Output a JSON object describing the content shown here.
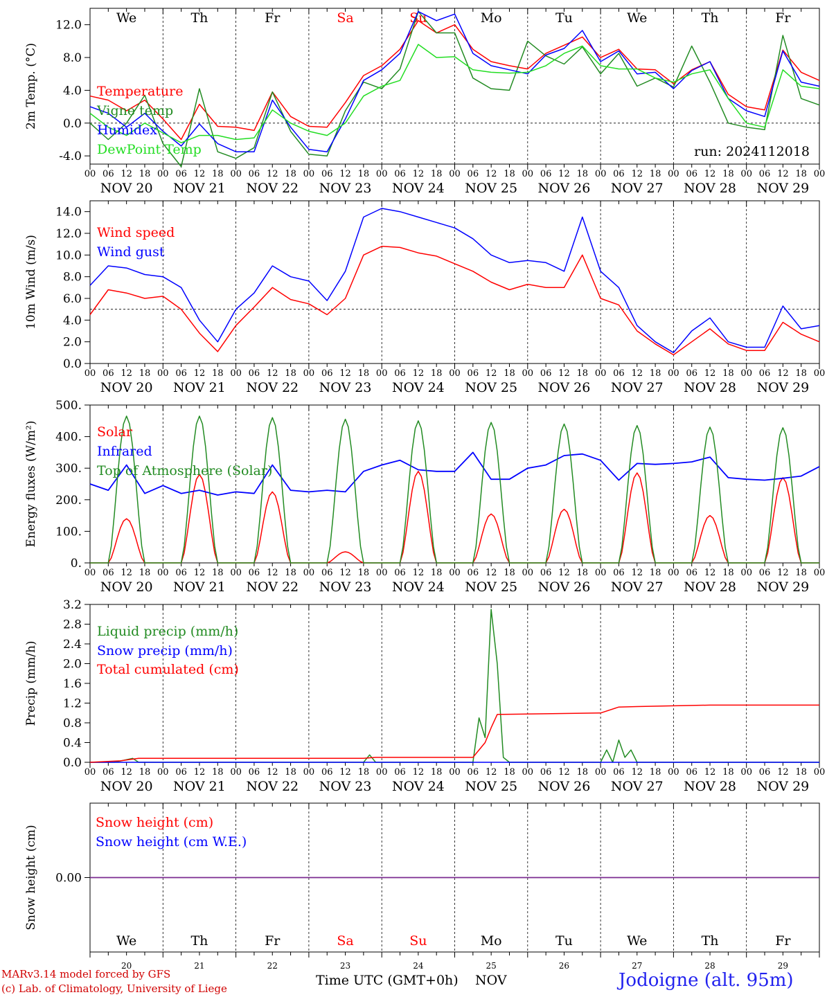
{
  "colors": {
    "red": "#ff0000",
    "green": "#228b22",
    "blue": "#0000ff",
    "lightgreen": "#22dd22",
    "purple": "#7a2a90",
    "weekend": "#ff0000"
  },
  "days": [
    "We",
    "Th",
    "Fr",
    "Sa",
    "Su",
    "Mo",
    "Tu",
    "We",
    "Th",
    "Fr"
  ],
  "weekend_flags": [
    false,
    false,
    false,
    true,
    true,
    false,
    false,
    false,
    false,
    false
  ],
  "dates": [
    "NOV 20",
    "NOV 21",
    "NOV 22",
    "NOV 23",
    "NOV 24",
    "NOV 25",
    "NOV 26",
    "NOV 27",
    "NOV 28",
    "NOV 29"
  ],
  "hour_ticks": [
    "00",
    "06",
    "12",
    "18"
  ],
  "final_hour_tick": "00",
  "bottom_day_numbers": [
    "20",
    "21",
    "22",
    "23",
    "24",
    "25",
    "26",
    "27",
    "28",
    "29"
  ],
  "bottom_month": "NOV",
  "xaxis_title": "Time UTC (GMT+0h)",
  "credits": [
    "MARv3.14 model forced by GFS",
    "(c) Lab. of Climatology, University of Liege"
  ],
  "station": "Jodoigne (alt. 95m)",
  "chart_data": [
    {
      "type": "line",
      "ylabel": "2m Temp. (°C)",
      "ylim": [
        -5,
        14
      ],
      "yticks": [
        "-4.0",
        "0.0",
        "4.0",
        "8.0",
        "12.0"
      ],
      "ytick_values": [
        -4,
        0,
        4,
        8,
        12
      ],
      "ref_line": 0,
      "run_label": "run: 2024112018",
      "show_days": true,
      "x_unit": "hours since NOV 20 00 UTC",
      "series": [
        {
          "name": "Temperature",
          "color_key": "red",
          "x": [
            0,
            6,
            12,
            18,
            24,
            30,
            36,
            42,
            48,
            54,
            60,
            66,
            72,
            78,
            84,
            90,
            96,
            102,
            108,
            114,
            120,
            126,
            132,
            138,
            144,
            150,
            156,
            162,
            168,
            174,
            180,
            186,
            192,
            198,
            204,
            210,
            216,
            222,
            228,
            234,
            240
          ],
          "y": [
            3.3,
            2.8,
            1.5,
            2.8,
            0.5,
            -2.0,
            2.3,
            -0.4,
            -0.5,
            -0.9,
            3.8,
            0.8,
            -0.4,
            -0.5,
            2.5,
            5.8,
            7.0,
            9.0,
            12.5,
            11.0,
            12.0,
            9.0,
            7.5,
            7.0,
            6.6,
            8.5,
            9.5,
            10.5,
            8.0,
            9.0,
            6.6,
            6.5,
            4.8,
            6.5,
            7.5,
            3.5,
            2.0,
            1.6,
            8.9,
            6.2,
            5.2
          ]
        },
        {
          "name": "Vigne temp",
          "color_key": "green",
          "x": [
            0,
            6,
            12,
            18,
            24,
            30,
            36,
            42,
            48,
            54,
            60,
            66,
            72,
            78,
            84,
            90,
            96,
            102,
            108,
            114,
            120,
            126,
            132,
            138,
            144,
            150,
            156,
            162,
            168,
            174,
            180,
            186,
            192,
            198,
            204,
            210,
            216,
            222,
            228,
            234,
            240
          ],
          "y": [
            0.0,
            -2.0,
            0.0,
            3.4,
            -2.5,
            -5.3,
            4.2,
            -3.5,
            -4.3,
            -3.0,
            3.8,
            -1.0,
            -3.8,
            -4.0,
            1.5,
            5.0,
            4.2,
            6.6,
            13.6,
            11.0,
            11.0,
            5.5,
            4.2,
            4.0,
            10.0,
            8.2,
            7.2,
            9.3,
            6.0,
            8.5,
            4.5,
            5.5,
            4.4,
            9.4,
            5.0,
            0.0,
            -0.5,
            -0.8,
            10.7,
            3.0,
            2.2
          ]
        },
        {
          "name": "Humidex",
          "color_key": "blue",
          "x": [
            0,
            6,
            12,
            18,
            24,
            30,
            36,
            42,
            48,
            54,
            60,
            66,
            72,
            78,
            84,
            90,
            96,
            102,
            108,
            114,
            120,
            126,
            132,
            138,
            144,
            150,
            156,
            162,
            168,
            174,
            180,
            186,
            192,
            198,
            204,
            210,
            216,
            222,
            228,
            234,
            240
          ],
          "y": [
            2.0,
            1.2,
            -0.5,
            1.2,
            -1.0,
            -2.8,
            -0.1,
            -2.5,
            -3.5,
            -3.5,
            2.8,
            -0.5,
            -3.2,
            -3.5,
            0.5,
            5.2,
            6.5,
            8.5,
            13.6,
            12.5,
            13.3,
            8.5,
            7.0,
            6.5,
            6.0,
            8.3,
            9.1,
            11.3,
            7.5,
            8.8,
            6.0,
            6.2,
            4.2,
            6.4,
            7.5,
            3.0,
            1.5,
            0.8,
            8.8,
            5.0,
            4.5
          ]
        },
        {
          "name": "DewPoint Temp",
          "color_key": "lightgreen",
          "x": [
            0,
            6,
            12,
            18,
            24,
            30,
            36,
            42,
            48,
            54,
            60,
            66,
            72,
            78,
            84,
            90,
            96,
            102,
            108,
            114,
            120,
            126,
            132,
            138,
            144,
            150,
            156,
            162,
            168,
            174,
            180,
            186,
            192,
            198,
            204,
            210,
            216,
            222,
            228,
            234,
            240
          ],
          "y": [
            1.2,
            -0.5,
            -1.5,
            0.0,
            -1.2,
            -2.4,
            -1.5,
            -1.5,
            -2.0,
            -1.8,
            1.6,
            0.0,
            -1.0,
            -1.5,
            0.0,
            3.3,
            4.5,
            5.2,
            9.6,
            8.0,
            8.1,
            6.5,
            6.2,
            6.1,
            6.2,
            7.0,
            8.5,
            9.4,
            7.0,
            6.6,
            6.6,
            5.5,
            5.0,
            6.0,
            6.5,
            3.0,
            0.0,
            -0.5,
            6.5,
            4.5,
            4.2
          ]
        }
      ]
    },
    {
      "type": "line",
      "ylabel": "10m Wind (m/s)",
      "ylim": [
        0,
        15
      ],
      "yticks": [
        "0.0",
        "2.0",
        "4.0",
        "6.0",
        "8.0",
        "10.0",
        "12.0",
        "14.0"
      ],
      "ytick_values": [
        0,
        2,
        4,
        6,
        8,
        10,
        12,
        14
      ],
      "ref_line": 5,
      "show_days": false,
      "series": [
        {
          "name": "Wind speed",
          "color_key": "red",
          "x": [
            0,
            6,
            12,
            18,
            24,
            30,
            36,
            42,
            48,
            54,
            60,
            66,
            72,
            78,
            84,
            90,
            96,
            102,
            108,
            114,
            120,
            126,
            132,
            138,
            144,
            150,
            156,
            162,
            168,
            174,
            180,
            186,
            192,
            198,
            204,
            210,
            216,
            222,
            228,
            234,
            240
          ],
          "y": [
            4.5,
            6.8,
            6.5,
            6.0,
            6.2,
            5.0,
            2.8,
            1.1,
            3.5,
            5.2,
            7.0,
            5.9,
            5.5,
            4.5,
            6.0,
            10.0,
            10.8,
            10.7,
            10.2,
            9.9,
            9.2,
            8.5,
            7.5,
            6.8,
            7.3,
            7.0,
            7.0,
            10.0,
            6.0,
            5.4,
            3.0,
            1.8,
            0.8,
            2.0,
            3.2,
            1.8,
            1.2,
            1.2,
            3.8,
            2.7,
            2.0
          ]
        },
        {
          "name": "Wind gust",
          "color_key": "blue",
          "x": [
            0,
            6,
            12,
            18,
            24,
            30,
            36,
            42,
            48,
            54,
            60,
            66,
            72,
            78,
            84,
            90,
            96,
            102,
            108,
            114,
            120,
            126,
            132,
            138,
            144,
            150,
            156,
            162,
            168,
            174,
            180,
            186,
            192,
            198,
            204,
            210,
            216,
            222,
            228,
            234,
            240
          ],
          "y": [
            7.2,
            9.0,
            8.8,
            8.2,
            8.0,
            7.0,
            4.0,
            2.0,
            5.0,
            6.5,
            9.0,
            8.0,
            7.6,
            5.8,
            8.5,
            13.5,
            14.3,
            14.0,
            13.5,
            13.0,
            12.5,
            11.5,
            10.0,
            9.3,
            9.5,
            9.3,
            8.5,
            13.5,
            8.5,
            7.0,
            3.5,
            2.0,
            1.0,
            3.0,
            4.2,
            2.0,
            1.5,
            1.5,
            5.3,
            3.2,
            3.5
          ]
        }
      ]
    },
    {
      "type": "line",
      "ylabel": "Energy fluxes (W/m²)",
      "ylim": [
        0,
        500
      ],
      "yticks": [
        "0.",
        "100.",
        "200.",
        "300.",
        "400.",
        "500."
      ],
      "ytick_values": [
        0,
        100,
        200,
        300,
        400,
        500
      ],
      "show_days": false,
      "series": [
        {
          "name": "Solar",
          "color_key": "red",
          "peaks": [
            140,
            280,
            225,
            35,
            290,
            155,
            170,
            285,
            150,
            270
          ]
        },
        {
          "name": "Infrared",
          "color_key": "blue",
          "x": [
            0,
            6,
            12,
            18,
            24,
            30,
            36,
            42,
            48,
            54,
            60,
            66,
            72,
            78,
            84,
            90,
            96,
            102,
            108,
            114,
            120,
            126,
            132,
            138,
            144,
            150,
            156,
            162,
            168,
            174,
            180,
            186,
            192,
            198,
            204,
            210,
            216,
            222,
            228,
            234,
            240
          ],
          "y": [
            250,
            230,
            310,
            220,
            245,
            220,
            230,
            215,
            225,
            220,
            310,
            230,
            225,
            230,
            225,
            290,
            310,
            325,
            295,
            290,
            290,
            350,
            265,
            265,
            300,
            310,
            340,
            345,
            325,
            262,
            315,
            312,
            315,
            320,
            335,
            270,
            265,
            262,
            268,
            275,
            305
          ]
        },
        {
          "name": "Top of Atmosphere (Solar)",
          "color_key": "green",
          "peaks": [
            465,
            465,
            460,
            455,
            450,
            445,
            440,
            435,
            430,
            428
          ]
        }
      ]
    },
    {
      "type": "line",
      "ylabel": "Precip (mm/h)",
      "ylim": [
        0,
        3.2
      ],
      "yticks": [
        "0.0",
        "0.4",
        "0.8",
        "1.2",
        "1.6",
        "2.0",
        "2.4",
        "2.8",
        "3.2"
      ],
      "ytick_values": [
        0,
        0.4,
        0.8,
        1.2,
        1.6,
        2.0,
        2.4,
        2.8,
        3.2
      ],
      "show_days": false,
      "series": [
        {
          "name": "Liquid precip (mm/h)",
          "color_key": "green",
          "x": [
            0,
            8,
            14,
            16,
            24,
            90,
            92,
            94,
            120,
            126,
            128,
            130,
            132,
            134,
            136,
            138,
            140,
            142,
            144,
            168,
            170,
            172,
            174,
            176,
            178,
            180,
            182,
            240
          ],
          "y": [
            0,
            0,
            0.08,
            0,
            0,
            0,
            0.15,
            0,
            0,
            0,
            0.9,
            0.5,
            3.1,
            2.0,
            0.1,
            0,
            0,
            0,
            0,
            0,
            0.25,
            0,
            0.45,
            0.1,
            0.25,
            0,
            0,
            0
          ]
        },
        {
          "name": "Snow precip (mm/h)",
          "color_key": "blue",
          "x": [
            0,
            240
          ],
          "y": [
            0,
            0
          ]
        },
        {
          "name": "Total cumulated (cm)",
          "color_key": "red",
          "x": [
            0,
            10,
            16,
            24,
            90,
            94,
            126,
            130,
            132,
            134,
            168,
            174,
            180,
            204,
            240
          ],
          "y": [
            0,
            0.03,
            0.08,
            0.08,
            0.08,
            0.1,
            0.1,
            0.4,
            0.7,
            0.97,
            1.0,
            1.12,
            1.13,
            1.16,
            1.16
          ]
        }
      ]
    },
    {
      "type": "line",
      "ylabel": "Snow height (cm)",
      "ylim": [
        -0.1,
        0.1
      ],
      "yticks": [
        "0.00"
      ],
      "ytick_values": [
        0
      ],
      "show_days": false,
      "series": [
        {
          "name": "Snow height (cm)",
          "color_key": "red",
          "x": [
            0,
            240
          ],
          "y": [
            0,
            0
          ]
        },
        {
          "name": "Snow height (cm W.E.)",
          "color_key": "blue",
          "x": [
            0,
            240
          ],
          "y": [
            0,
            0
          ]
        }
      ]
    }
  ]
}
